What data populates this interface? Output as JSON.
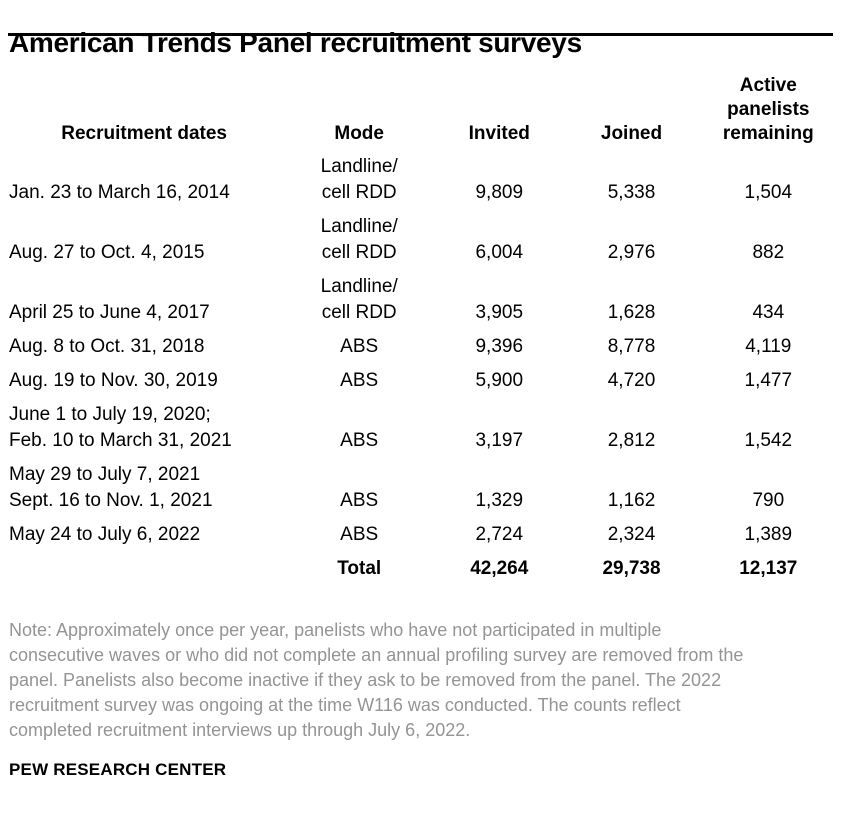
{
  "title": "American Trends Panel recruitment surveys",
  "colors": {
    "text": "#000000",
    "note_text": "#949494",
    "rule": "#000000",
    "background": "#ffffff"
  },
  "table": {
    "headers": {
      "dates": "Recruitment dates",
      "mode": "Mode",
      "invited": "Invited",
      "joined": "Joined",
      "remaining": "Active\npanelists\nremaining"
    },
    "rows": [
      {
        "dates": "Jan. 23 to March 16, 2014",
        "mode": "Landline/\ncell RDD",
        "invited": "9,809",
        "joined": "5,338",
        "remaining": "1,504"
      },
      {
        "dates": "Aug. 27 to Oct. 4, 2015",
        "mode": "Landline/\ncell RDD",
        "invited": "6,004",
        "joined": "2,976",
        "remaining": "882"
      },
      {
        "dates": "April 25 to June 4, 2017",
        "mode": "Landline/\ncell RDD",
        "invited": "3,905",
        "joined": "1,628",
        "remaining": "434"
      },
      {
        "dates": "Aug. 8 to Oct. 31, 2018",
        "mode": "ABS",
        "invited": "9,396",
        "joined": "8,778",
        "remaining": "4,119"
      },
      {
        "dates": "Aug. 19 to Nov. 30, 2019",
        "mode": "ABS",
        "invited": "5,900",
        "joined": "4,720",
        "remaining": "1,477"
      },
      {
        "dates": "June 1 to July 19, 2020;\nFeb. 10 to March 31, 2021",
        "mode": "ABS",
        "invited": "3,197",
        "joined": "2,812",
        "remaining": "1,542"
      },
      {
        "dates": "May 29 to July 7, 2021\nSept. 16 to Nov. 1, 2021",
        "mode": "ABS",
        "invited": "1,329",
        "joined": "1,162",
        "remaining": "790"
      },
      {
        "dates": "May 24 to July 6, 2022",
        "mode": "ABS",
        "invited": "2,724",
        "joined": "2,324",
        "remaining": "1,389"
      }
    ],
    "total": {
      "label": "Total",
      "invited": "42,264",
      "joined": "29,738",
      "remaining": "12,137"
    }
  },
  "note_lines": [
    "Note: Approximately once per year, panelists who have not participated in multiple",
    "consecutive waves or who did not complete an annual profiling survey are removed from the",
    "panel. Panelists also become inactive if they ask to be removed from the panel.  The 2022",
    "recruitment survey was ongoing at the time W116 was conducted. The counts reflect",
    "completed recruitment interviews up through July 6, 2022."
  ],
  "source": "PEW RESEARCH CENTER",
  "chart_data": {
    "type": "table",
    "title": "American Trends Panel recruitment surveys",
    "columns": [
      "Recruitment dates",
      "Mode",
      "Invited",
      "Joined",
      "Active panelists remaining"
    ],
    "rows": [
      [
        "Jan. 23 to March 16, 2014",
        "Landline/cell RDD",
        9809,
        5338,
        1504
      ],
      [
        "Aug. 27 to Oct. 4, 2015",
        "Landline/cell RDD",
        6004,
        2976,
        882
      ],
      [
        "April 25 to June 4, 2017",
        "Landline/cell RDD",
        3905,
        1628,
        434
      ],
      [
        "Aug. 8 to Oct. 31, 2018",
        "ABS",
        9396,
        8778,
        4119
      ],
      [
        "Aug. 19 to Nov. 30, 2019",
        "ABS",
        5900,
        4720,
        1477
      ],
      [
        "June 1 to July 19, 2020; Feb. 10 to March 31, 2021",
        "ABS",
        3197,
        2812,
        1542
      ],
      [
        "May 29 to July 7, 2021 Sept. 16 to Nov. 1, 2021",
        "ABS",
        1329,
        1162,
        790
      ],
      [
        "May 24 to July 6, 2022",
        "ABS",
        2724,
        2324,
        1389
      ]
    ],
    "total_row": [
      "",
      "Total",
      42264,
      29738,
      12137
    ]
  }
}
